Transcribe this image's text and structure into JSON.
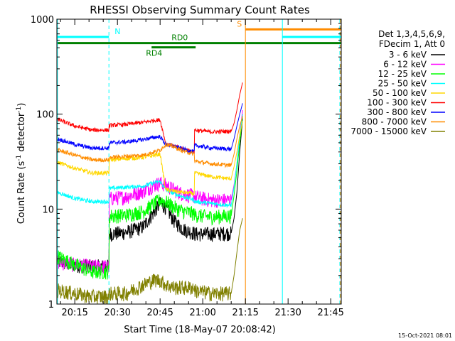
{
  "chart_data": {
    "type": "line",
    "title": "RHESSI Observing Summary Count Rates",
    "xlabel": "Start Time (18-May-07 20:08:42)",
    "ylabel_prefix": "Count Rate (s",
    "ylabel_sup1": "-1",
    "ylabel_mid": " detector",
    "ylabel_sup2": "-1",
    "ylabel_suffix": ")",
    "footer": "15-Oct-2021 08:01",
    "x_ticks": [
      "20:15",
      "20:30",
      "20:45",
      "21:00",
      "21:15",
      "21:30",
      "21:45"
    ],
    "x_tick_minutes": [
      15,
      30,
      45,
      60,
      75,
      90,
      105
    ],
    "x_range_minutes": [
      8.7,
      108.7
    ],
    "y_scale": "log",
    "y_range": [
      1,
      1000
    ],
    "y_ticks": [
      "1",
      "10",
      "100",
      "1000"
    ],
    "legend_header": [
      "Det 1,3,4,5,6,9,",
      "FDecim 1, Att 0"
    ],
    "series": [
      {
        "name": "3 - 6 keV",
        "color": "#000000",
        "x": [
          9,
          15,
          21,
          27,
          27.1,
          33,
          39,
          43,
          45,
          47,
          50,
          53,
          57,
          57.1,
          63,
          69,
          70
        ],
        "y": [
          2.8,
          2.6,
          2.5,
          2.5,
          5.5,
          5.7,
          6.5,
          9.5,
          11.5,
          10.5,
          7.5,
          6.2,
          5.6,
          5.5,
          5.5,
          5.6,
          5.6
        ]
      },
      {
        "name": "6 - 12 keV",
        "color": "#ff00ff",
        "x": [
          9,
          15,
          21,
          27,
          27.1,
          33,
          39,
          43,
          45,
          47,
          50,
          53,
          57,
          57.1,
          63,
          69,
          70
        ],
        "y": [
          2.8,
          2.6,
          2.5,
          2.5,
          13,
          13.5,
          15.5,
          18,
          19,
          18,
          16,
          14.5,
          13.8,
          13.5,
          12.5,
          12.5,
          12.5
        ]
      },
      {
        "name": "12 - 25 keV",
        "color": "#00ff00",
        "x": [
          9,
          15,
          21,
          27,
          27.1,
          33,
          39,
          43,
          45,
          47,
          50,
          53,
          57,
          57.1,
          63,
          69,
          70
        ],
        "y": [
          3.2,
          2.6,
          2.2,
          2.2,
          8.5,
          8.7,
          9.5,
          11.5,
          12.5,
          12,
          10.5,
          9.5,
          9,
          8.7,
          8.3,
          8.5,
          8.5
        ]
      },
      {
        "name": "25 - 50 keV",
        "color": "#00ffff",
        "x": [
          9,
          15,
          21,
          27,
          27.1,
          33,
          39,
          43,
          45,
          47,
          50,
          53,
          57,
          57.1,
          63,
          69,
          70
        ],
        "y": [
          15,
          13,
          12,
          12,
          16.5,
          17,
          17.5,
          19,
          19.5,
          16,
          14.5,
          13.5,
          12.5,
          12,
          11.5,
          11,
          11
        ]
      },
      {
        "name": "50 - 100 keV",
        "color": "#ffd700",
        "x": [
          9,
          15,
          21,
          27,
          27.1,
          33,
          39,
          43,
          45,
          47,
          50,
          53,
          57,
          57.1,
          63,
          69,
          70
        ],
        "y": [
          31,
          27,
          24,
          24,
          33,
          34,
          35,
          37,
          38,
          16,
          15.5,
          15,
          14.5,
          24,
          22,
          21,
          21
        ]
      },
      {
        "name": "100 - 300 keV",
        "color": "#ff0000",
        "x": [
          9,
          15,
          21,
          27,
          27.1,
          33,
          39,
          43,
          45,
          47,
          50,
          53,
          57,
          57.1,
          63,
          69,
          70
        ],
        "y": [
          88,
          75,
          68,
          68,
          76,
          78,
          82,
          86,
          87,
          49,
          46,
          43,
          40,
          68,
          65,
          66,
          66
        ]
      },
      {
        "name": "300 - 800 keV",
        "color": "#0000ff",
        "x": [
          9,
          15,
          21,
          27,
          27.1,
          33,
          39,
          43,
          45,
          47,
          50,
          53,
          57,
          57.1,
          63,
          69,
          70
        ],
        "y": [
          55,
          48,
          44,
          44,
          50,
          51,
          54,
          57,
          58,
          48,
          46,
          43,
          40,
          47,
          44,
          43,
          43
        ]
      },
      {
        "name": "800 - 7000 keV",
        "color": "#ff8c00",
        "x": [
          9,
          15,
          21,
          27,
          27.1,
          33,
          39,
          43,
          45,
          47,
          50,
          53,
          57,
          57.1,
          63,
          69,
          70
        ],
        "y": [
          42,
          37,
          33,
          33,
          35,
          36,
          37,
          40,
          42,
          48,
          45,
          41,
          38,
          32,
          30,
          29,
          29
        ]
      },
      {
        "name": "7000 - 15000 keV",
        "color": "#808000",
        "x": [
          9,
          15,
          21,
          27,
          27.1,
          33,
          39,
          43,
          45,
          47,
          50,
          53,
          57,
          57.1,
          63,
          69,
          70
        ],
        "y": [
          1.4,
          1.3,
          1.2,
          1.2,
          1.3,
          1.3,
          1.6,
          1.8,
          1.8,
          1.6,
          1.5,
          1.5,
          1.5,
          1.4,
          1.3,
          1.3,
          1.3
        ]
      }
    ],
    "flare_rise": {
      "x": [
        70,
        71,
        72,
        73,
        74
      ],
      "series_y": {
        "3 - 6 keV": [
          5.6,
          8,
          15,
          40,
          90
        ],
        "6 - 12 keV": [
          12.5,
          18,
          30,
          60,
          110
        ],
        "12 - 25 keV": [
          8.5,
          14,
          25,
          50,
          95
        ],
        "25 - 50 keV": [
          11,
          17,
          30,
          60,
          100
        ],
        "50 - 100 keV": [
          21,
          28,
          40,
          60,
          85
        ],
        "100 - 300 keV": [
          66,
          80,
          110,
          160,
          215
        ],
        "300 - 800 keV": [
          43,
          55,
          75,
          100,
          130
        ],
        "800 - 7000 keV": [
          29,
          38,
          55,
          75,
          95
        ],
        "7000 - 15000 keV": [
          1.3,
          2,
          3.5,
          6,
          8
        ]
      }
    },
    "flag_bars": [
      {
        "label": "N",
        "color": "#00ffff",
        "x_start": 8.7,
        "x_end": 27,
        "y_level": 650,
        "label_x": 29
      },
      {
        "label": "RD0",
        "color": "#008000",
        "x_start": 8.7,
        "x_end": 108.7,
        "y_level": 560,
        "label_x": 49
      },
      {
        "label": "RD4",
        "color": "#008000",
        "x_start": 42,
        "x_end": 57.5,
        "y_level": 505,
        "label_x": 40
      },
      {
        "label": "S",
        "color": "#ff8c00",
        "x_start": 75,
        "x_end": 108.7,
        "y_level": 780,
        "label_x": 72
      },
      {
        "label": "",
        "color": "#00ffff",
        "x_start": 88,
        "x_end": 108.7,
        "y_level": 650,
        "label_x": 0
      }
    ],
    "vertical_lines": [
      {
        "x": 8.9,
        "color": "#00ffff",
        "style": "solid"
      },
      {
        "x": 27,
        "color": "#00ffff",
        "style": "dashed"
      },
      {
        "x": 75,
        "color": "#ff8c00",
        "style": "solid"
      },
      {
        "x": 88,
        "color": "#00ffff",
        "style": "solid"
      },
      {
        "x": 108.2,
        "color": "#00ffff",
        "style": "dashed"
      },
      {
        "x": 108.4,
        "color": "#ff8c00",
        "style": "dashed"
      }
    ],
    "grid": false,
    "legend_position": "right"
  }
}
